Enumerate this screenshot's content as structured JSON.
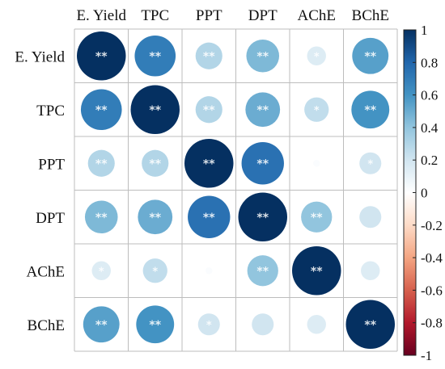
{
  "chart_data": {
    "type": "heatmap",
    "style": "correlation-circles",
    "variables": [
      "E. Yield",
      "TPC",
      "PPT",
      "DPT",
      "AChE",
      "BChE"
    ],
    "matrix": [
      [
        1.0,
        0.7,
        0.3,
        0.45,
        0.15,
        0.55
      ],
      [
        0.7,
        1.0,
        0.3,
        0.5,
        0.25,
        0.6
      ],
      [
        0.3,
        0.3,
        1.0,
        0.75,
        0.02,
        0.2
      ],
      [
        0.45,
        0.5,
        0.75,
        1.0,
        0.4,
        0.2
      ],
      [
        0.15,
        0.25,
        0.02,
        0.4,
        1.0,
        0.15
      ],
      [
        0.55,
        0.6,
        0.2,
        0.2,
        0.15,
        1.0
      ]
    ],
    "significance": [
      [
        "**",
        "**",
        "**",
        "**",
        "*",
        "**"
      ],
      [
        "**",
        "**",
        "**",
        "**",
        "*",
        "**"
      ],
      [
        "**",
        "**",
        "**",
        "**",
        "",
        "*"
      ],
      [
        "**",
        "**",
        "**",
        "**",
        "**",
        ""
      ],
      [
        "*",
        "*",
        "",
        "**",
        "**",
        ""
      ],
      [
        "**",
        "**",
        "*",
        "",
        "",
        "**"
      ]
    ],
    "colorbar": {
      "range": [
        -1,
        1
      ],
      "ticks": [
        "1",
        "0.8",
        "0.6",
        "0.4",
        "0.2",
        "0",
        "-0.2",
        "-0.4",
        "-0.6",
        "-0.8",
        "-1"
      ],
      "colors": [
        "#67001F",
        "#B2182B",
        "#D6604D",
        "#F4A582",
        "#FDDBC7",
        "#FFFFFF",
        "#D1E5F0",
        "#92C5DE",
        "#4393C3",
        "#2166AC",
        "#053061"
      ]
    },
    "grid": true
  }
}
